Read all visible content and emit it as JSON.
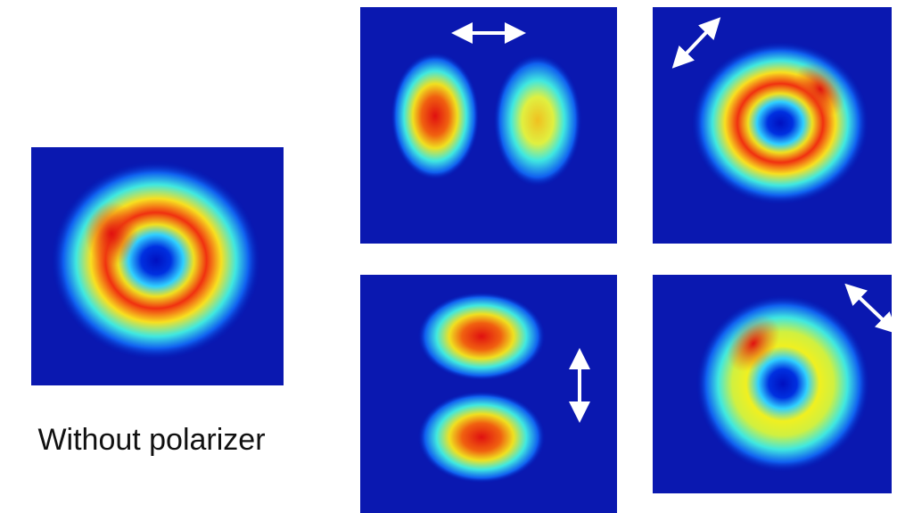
{
  "caption": "Without polarizer"
}
